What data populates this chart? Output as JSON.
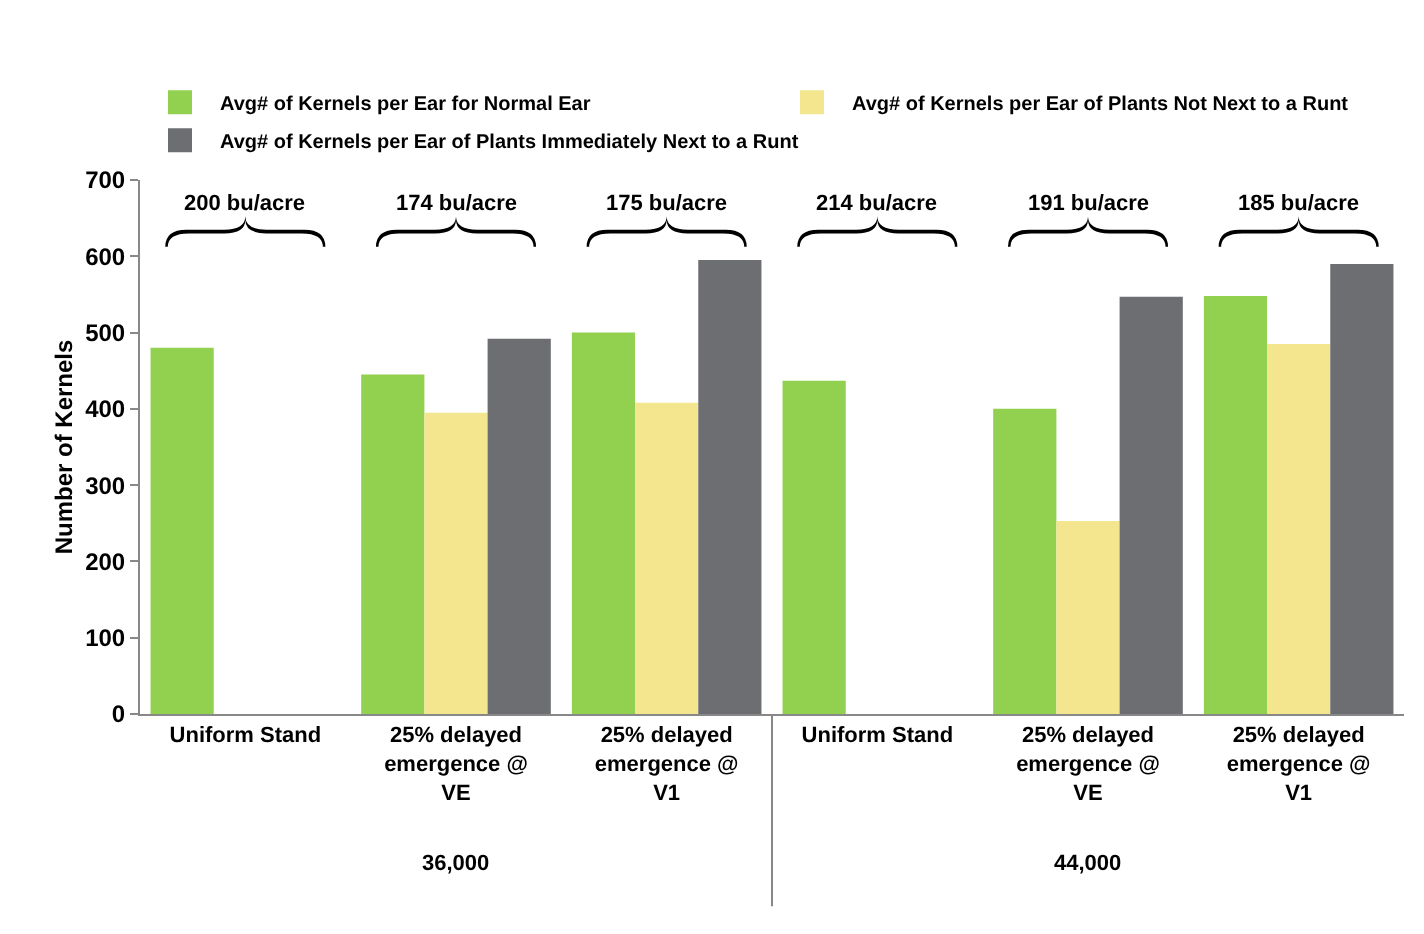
{
  "chart_data": {
    "type": "bar",
    "ylabel": "Number of Kernels",
    "categories": [
      "Uniform Stand",
      "25% delayed emergence @ VE",
      "25% delayed emergence @ V1",
      "Uniform Stand",
      "25% delayed emergence @ VE",
      "25% delayed emergence @ V1"
    ],
    "series": [
      {
        "name": "Avg# of Kernels per Ear for Normal Ear",
        "color": "#92d050",
        "values": [
          480,
          445,
          500,
          437,
          400,
          548
        ]
      },
      {
        "name": "Avg# of Kernels per Ear of Plants Not Next to a Runt",
        "color": "#f3e68e",
        "values": [
          null,
          395,
          408,
          null,
          253,
          485
        ]
      },
      {
        "name": "Avg# of Kernels per Ear of Plants Immediately Next to a Runt",
        "color": "#6d6e71",
        "values": [
          null,
          492,
          595,
          null,
          547,
          590
        ]
      }
    ],
    "annotations": [
      "200 bu/acre",
      "174 bu/acre",
      "175 bu/acre",
      "214 bu/acre",
      "191 bu/acre",
      "185 bu/acre",
      "36,000",
      "44,000"
    ],
    "ylim": [
      0,
      700
    ],
    "yticks": [
      0,
      100,
      200,
      300,
      400,
      500,
      600,
      700
    ],
    "grid": false,
    "legend": "top"
  }
}
